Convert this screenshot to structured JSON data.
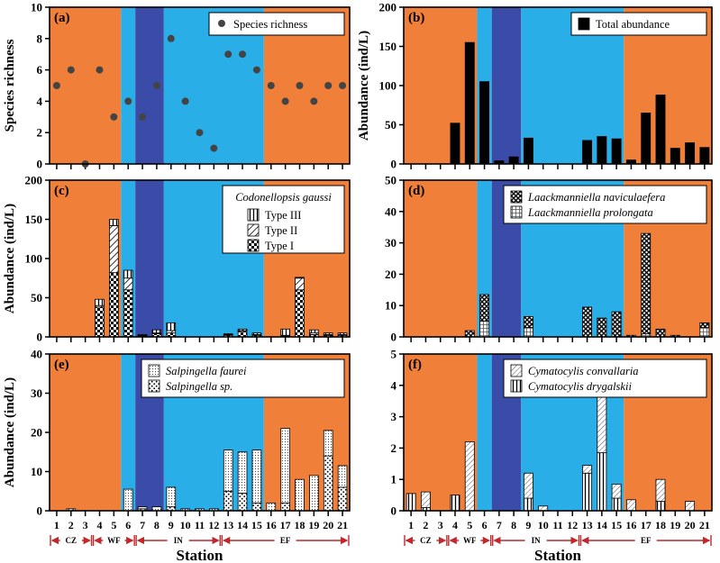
{
  "colors": {
    "orange": "#f07f3a",
    "light_blue": "#29aee8",
    "dark_blue": "#3b4ba8",
    "zone_arrow": "#c0282d",
    "bar_black": "#000000",
    "point": "#444444"
  },
  "background_zones": [
    {
      "color": "orange",
      "stations": [
        1,
        5
      ]
    },
    {
      "color": "light_blue",
      "stations": [
        6,
        6
      ]
    },
    {
      "color": "dark_blue",
      "stations": [
        7,
        8
      ]
    },
    {
      "color": "light_blue",
      "stations": [
        9,
        15
      ]
    },
    {
      "color": "orange",
      "stations": [
        16,
        21
      ]
    }
  ],
  "stations": [
    "1",
    "2",
    "3",
    "4",
    "5",
    "6",
    "7",
    "8",
    "9",
    "10",
    "11",
    "12",
    "13",
    "14",
    "15",
    "16",
    "17",
    "18",
    "19",
    "20",
    "21"
  ],
  "zones": [
    {
      "label": "CZ",
      "stations": [
        1,
        3
      ]
    },
    {
      "label": "WF",
      "stations": [
        4,
        6
      ]
    },
    {
      "label": "IN",
      "stations": [
        7,
        12
      ]
    },
    {
      "label": "EF",
      "stations": [
        13,
        21
      ]
    }
  ],
  "x_axis_title": "Station",
  "chart_data": [
    {
      "id": "a",
      "panel_label": "(a)",
      "type": "scatter",
      "ylabel": "Species richness",
      "ylim": [
        0,
        10
      ],
      "yticks": [
        "0",
        "2",
        "4",
        "6",
        "8",
        "10"
      ],
      "legend": [
        {
          "name": "Species richness",
          "marker": "dot"
        }
      ],
      "legend_position": "top-right",
      "x": [
        1,
        2,
        3,
        4,
        5,
        6,
        7,
        8,
        9,
        10,
        11,
        12,
        13,
        14,
        15,
        16,
        17,
        18,
        19,
        20,
        21
      ],
      "values": [
        5,
        6,
        0,
        6,
        3,
        4,
        3,
        5,
        8,
        4,
        2,
        1,
        7,
        7,
        6,
        5,
        4,
        5,
        4,
        5,
        5
      ]
    },
    {
      "id": "b",
      "panel_label": "(b)",
      "type": "bar",
      "ylabel": "Abundance (ind/L)",
      "ylim": [
        0,
        200
      ],
      "yticks": [
        "0",
        "50",
        "100",
        "150",
        "200"
      ],
      "legend": [
        {
          "name": "Total abundance",
          "pattern": "black"
        }
      ],
      "legend_position": "top-right",
      "series": [
        {
          "name": "Total abundance",
          "pattern": "black",
          "values": [
            0,
            0,
            0,
            52,
            155,
            105,
            4,
            9,
            33,
            0,
            0,
            0,
            30,
            35,
            32,
            5,
            65,
            88,
            20,
            27,
            21
          ]
        }
      ]
    },
    {
      "id": "c",
      "panel_label": "(c)",
      "type": "bar",
      "ylabel": "Abundance (ind/L)",
      "ylim": [
        0,
        200
      ],
      "yticks": [
        "0",
        "50",
        "100",
        "150",
        "200"
      ],
      "legend_title": "Codonellopsis gaussi",
      "legend": [
        {
          "name": "Type III",
          "pattern": "vlines"
        },
        {
          "name": "Type II",
          "pattern": "diag"
        },
        {
          "name": "Type I",
          "pattern": "checker"
        }
      ],
      "legend_position": "top-right",
      "stacked": true,
      "series": [
        {
          "name": "Type I",
          "pattern": "checker",
          "values": [
            0,
            0,
            0,
            38,
            82,
            60,
            1,
            4,
            5,
            0,
            0,
            0,
            2,
            7,
            2,
            0,
            1,
            60,
            3,
            2,
            2
          ]
        },
        {
          "name": "Type II",
          "pattern": "diag",
          "values": [
            0,
            0,
            0,
            2,
            60,
            15,
            1,
            1,
            3,
            0,
            0,
            0,
            1,
            1,
            1,
            0,
            1,
            15,
            2,
            1,
            1
          ]
        },
        {
          "name": "Type III",
          "pattern": "vlines",
          "values": [
            0,
            0,
            0,
            8,
            8,
            10,
            1,
            4,
            10,
            0,
            0,
            0,
            1,
            2,
            2,
            0,
            8,
            1,
            4,
            2,
            2
          ]
        }
      ]
    },
    {
      "id": "d",
      "panel_label": "(d)",
      "type": "bar",
      "ylabel": "",
      "ylim": [
        0,
        50
      ],
      "yticks": [
        "0",
        "10",
        "20",
        "30",
        "40",
        "50"
      ],
      "legend": [
        {
          "name": "Laackmanniella naviculaefera",
          "pattern": "xhatch",
          "italic": true
        },
        {
          "name": "Laackmanniella prolongata",
          "pattern": "grid",
          "italic": true
        }
      ],
      "legend_position": "top-right",
      "stacked": true,
      "series": [
        {
          "name": "Laackmanniella prolongata",
          "pattern": "grid",
          "values": [
            0,
            0,
            0,
            0,
            0,
            5,
            0,
            0,
            3,
            0,
            0,
            0,
            0,
            0,
            0,
            0,
            1,
            0,
            0,
            0,
            3
          ]
        },
        {
          "name": "Laackmanniella naviculaefera",
          "pattern": "xhatch",
          "values": [
            0,
            0,
            0,
            0,
            2,
            8.5,
            0,
            0,
            3.5,
            0,
            0,
            0,
            9.5,
            6,
            8,
            0.5,
            32,
            2.5,
            0.5,
            0,
            1.5
          ]
        }
      ]
    },
    {
      "id": "e",
      "panel_label": "(e)",
      "type": "bar",
      "ylabel": "Abundance (ind/L)",
      "ylim": [
        0,
        40
      ],
      "yticks": [
        "0",
        "10",
        "20",
        "30",
        "40"
      ],
      "legend": [
        {
          "name": "Salpingella faurei",
          "pattern": "dotted",
          "italic": true
        },
        {
          "name": "Salpingella sp.",
          "pattern": "dots",
          "italic": true
        }
      ],
      "legend_position": "top-right",
      "stacked": true,
      "series": [
        {
          "name": "Salpingella sp.",
          "pattern": "dots",
          "values": [
            0,
            0.5,
            0,
            0,
            0,
            0,
            0.5,
            0,
            1,
            0,
            0,
            0,
            5,
            4.5,
            2,
            0,
            2,
            0,
            0,
            14,
            6
          ]
        },
        {
          "name": "Salpingella faurei",
          "pattern": "dotted",
          "values": [
            0,
            0,
            0,
            0,
            0,
            5.5,
            0.5,
            1,
            5,
            0.5,
            0.5,
            0.5,
            10.5,
            10.5,
            13.5,
            2,
            19,
            8,
            9,
            6.5,
            5.5
          ]
        }
      ]
    },
    {
      "id": "f",
      "panel_label": "(f)",
      "type": "bar",
      "ylabel": "",
      "ylim": [
        0,
        5
      ],
      "yticks": [
        "0",
        "1",
        "2",
        "3",
        "4",
        "5"
      ],
      "legend": [
        {
          "name": "Cymatocylis convallaria",
          "pattern": "diagfine",
          "italic": true
        },
        {
          "name": "Cymatocylis drygalskii",
          "pattern": "vlines",
          "italic": true
        }
      ],
      "legend_position": "top-right",
      "stacked": true,
      "series": [
        {
          "name": "Cymatocylis drygalskii",
          "pattern": "vlines",
          "values": [
            0.55,
            0.1,
            0,
            0.5,
            0,
            0,
            0,
            0,
            0.4,
            0,
            0,
            0,
            1.2,
            1.85,
            0.4,
            0,
            0,
            0.3,
            0,
            0,
            0
          ]
        },
        {
          "name": "Cymatocylis convallaria",
          "pattern": "diagfine",
          "values": [
            0,
            0.5,
            0,
            0,
            2.2,
            0,
            0,
            0,
            0.8,
            0.15,
            0,
            0,
            0.25,
            1.9,
            0.45,
            0.35,
            0,
            0.7,
            0,
            0.3,
            0
          ]
        }
      ]
    }
  ]
}
